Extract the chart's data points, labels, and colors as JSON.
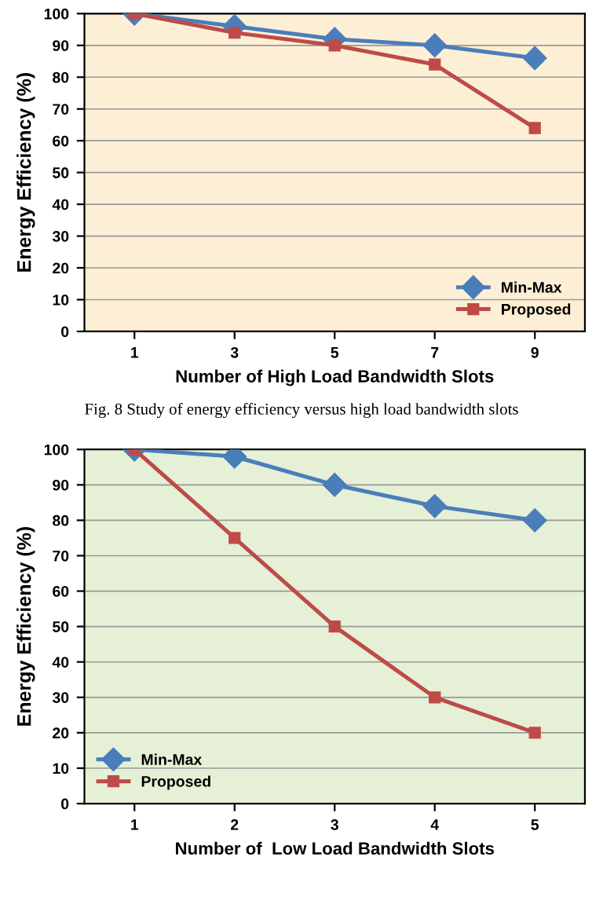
{
  "chart_data": [
    {
      "type": "line",
      "categories": [
        "1",
        "3",
        "5",
        "7",
        "9"
      ],
      "xlabel": "Number of High Load Bandwidth Slots",
      "ylabel": "Energy Efficiency (%)",
      "ylim": [
        0,
        100
      ],
      "yticks": [
        0,
        10,
        20,
        30,
        40,
        50,
        60,
        70,
        80,
        90,
        100
      ],
      "grid": "y",
      "legend": "bottom right",
      "series": [
        {
          "name": "Min-Max",
          "color": "#4a7ebb",
          "marker": "diamond",
          "values": [
            100,
            96,
            92,
            90,
            86
          ]
        },
        {
          "name": "Proposed",
          "color": "#be4b48",
          "marker": "square",
          "values": [
            100,
            94,
            90,
            84,
            64
          ]
        }
      ],
      "annotations": [
        "Fig. 8 Study of energy efficiency versus high load bandwidth slots"
      ]
    },
    {
      "type": "line",
      "categories": [
        "1",
        "2",
        "3",
        "4",
        "5"
      ],
      "xlabel": "Number of  Low Load Bandwidth Slots",
      "ylabel": "Energy Efficiency (%)",
      "ylim": [
        0,
        100
      ],
      "yticks": [
        0,
        10,
        20,
        30,
        40,
        50,
        60,
        70,
        80,
        90,
        100
      ],
      "grid": "y",
      "legend": "bottom left",
      "series": [
        {
          "name": "Min-Max",
          "color": "#4a7ebb",
          "marker": "diamond",
          "values": [
            100,
            98,
            90,
            84,
            80
          ]
        },
        {
          "name": "Proposed",
          "color": "#be4b48",
          "marker": "square",
          "values": [
            100,
            75,
            50,
            30,
            20
          ]
        }
      ]
    }
  ]
}
